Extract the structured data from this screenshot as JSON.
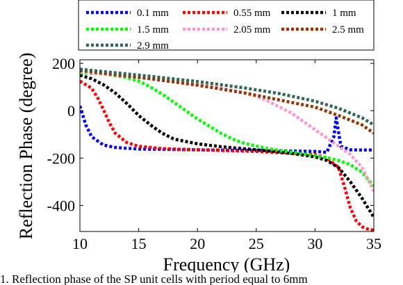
{
  "caption": "1. Reflection phase of the SP unit cells with period equal to 6mm",
  "chart_data": {
    "type": "line",
    "title": "",
    "xlabel": "Frequency (GHz)",
    "ylabel": "Reflection Phase (degree)",
    "xlim": [
      10,
      35
    ],
    "ylim": [
      -510,
      215
    ],
    "xticks": [
      "10",
      "15",
      "20",
      "25",
      "30",
      "35"
    ],
    "yticks": [
      "200",
      "0",
      "-200",
      "-400"
    ],
    "grid": false,
    "legend_position": "top",
    "series": [
      {
        "name": "0.1 mm",
        "color": "#0000ff",
        "x": [
          10,
          10.5,
          11,
          12,
          13,
          15,
          20,
          25,
          30,
          31,
          31.6,
          31.8,
          32.2,
          33,
          34,
          35
        ],
        "y": [
          20,
          -60,
          -110,
          -145,
          -155,
          -162,
          -165,
          -168,
          -172,
          -176,
          -110,
          -30,
          -150,
          -165,
          -166,
          -166
        ]
      },
      {
        "name": "0.55 mm",
        "color": "#ff0000",
        "x": [
          10,
          11,
          11.5,
          12,
          12.5,
          13,
          14,
          15,
          17,
          20,
          25,
          30,
          31,
          32,
          32.5,
          33,
          33.5,
          34,
          34.5,
          35
        ],
        "y": [
          125,
          95,
          55,
          5,
          -50,
          -95,
          -135,
          -150,
          -160,
          -165,
          -172,
          -185,
          -200,
          -240,
          -320,
          -410,
          -465,
          -490,
          -500,
          -505
        ]
      },
      {
        "name": "1 mm",
        "color": "#000000",
        "x": [
          10,
          11,
          12,
          13,
          14,
          15,
          16,
          17,
          18,
          20,
          22,
          25,
          28,
          30,
          31,
          32,
          33,
          34,
          35
        ],
        "y": [
          150,
          135,
          110,
          75,
          30,
          -20,
          -60,
          -95,
          -120,
          -140,
          -152,
          -165,
          -180,
          -195,
          -210,
          -240,
          -300,
          -370,
          -450
        ]
      },
      {
        "name": "1.5 mm",
        "color": "#00ff00",
        "x": [
          10,
          12,
          14,
          15,
          16,
          17,
          18,
          19,
          20,
          21,
          22,
          23,
          24,
          26,
          28,
          30,
          31,
          32,
          33,
          34,
          35
        ],
        "y": [
          160,
          155,
          140,
          125,
          100,
          70,
          35,
          0,
          -35,
          -65,
          -95,
          -120,
          -138,
          -160,
          -175,
          -190,
          -198,
          -210,
          -228,
          -260,
          -320
        ]
      },
      {
        "name": "2.05 mm",
        "color": "#ff99cc",
        "x": [
          10,
          12,
          14,
          16,
          18,
          20,
          22,
          24,
          25,
          26,
          27,
          28,
          29,
          30,
          31,
          32,
          33,
          34,
          35
        ],
        "y": [
          165,
          155,
          145,
          135,
          125,
          110,
          95,
          75,
          60,
          40,
          15,
          -10,
          -45,
          -80,
          -115,
          -150,
          -185,
          -240,
          -340
        ]
      },
      {
        "name": "2.5 mm",
        "color": "#993300",
        "x": [
          10,
          13,
          16,
          20,
          24,
          27,
          30,
          32,
          34,
          35
        ],
        "y": [
          170,
          152,
          135,
          108,
          75,
          45,
          15,
          -20,
          -60,
          -95
        ]
      },
      {
        "name": "2.9 mm",
        "color": "#336655",
        "x": [
          10,
          13,
          16,
          20,
          24,
          27,
          30,
          32,
          34,
          35
        ],
        "y": [
          175,
          160,
          145,
          123,
          96,
          72,
          40,
          10,
          -30,
          -60
        ]
      }
    ]
  }
}
